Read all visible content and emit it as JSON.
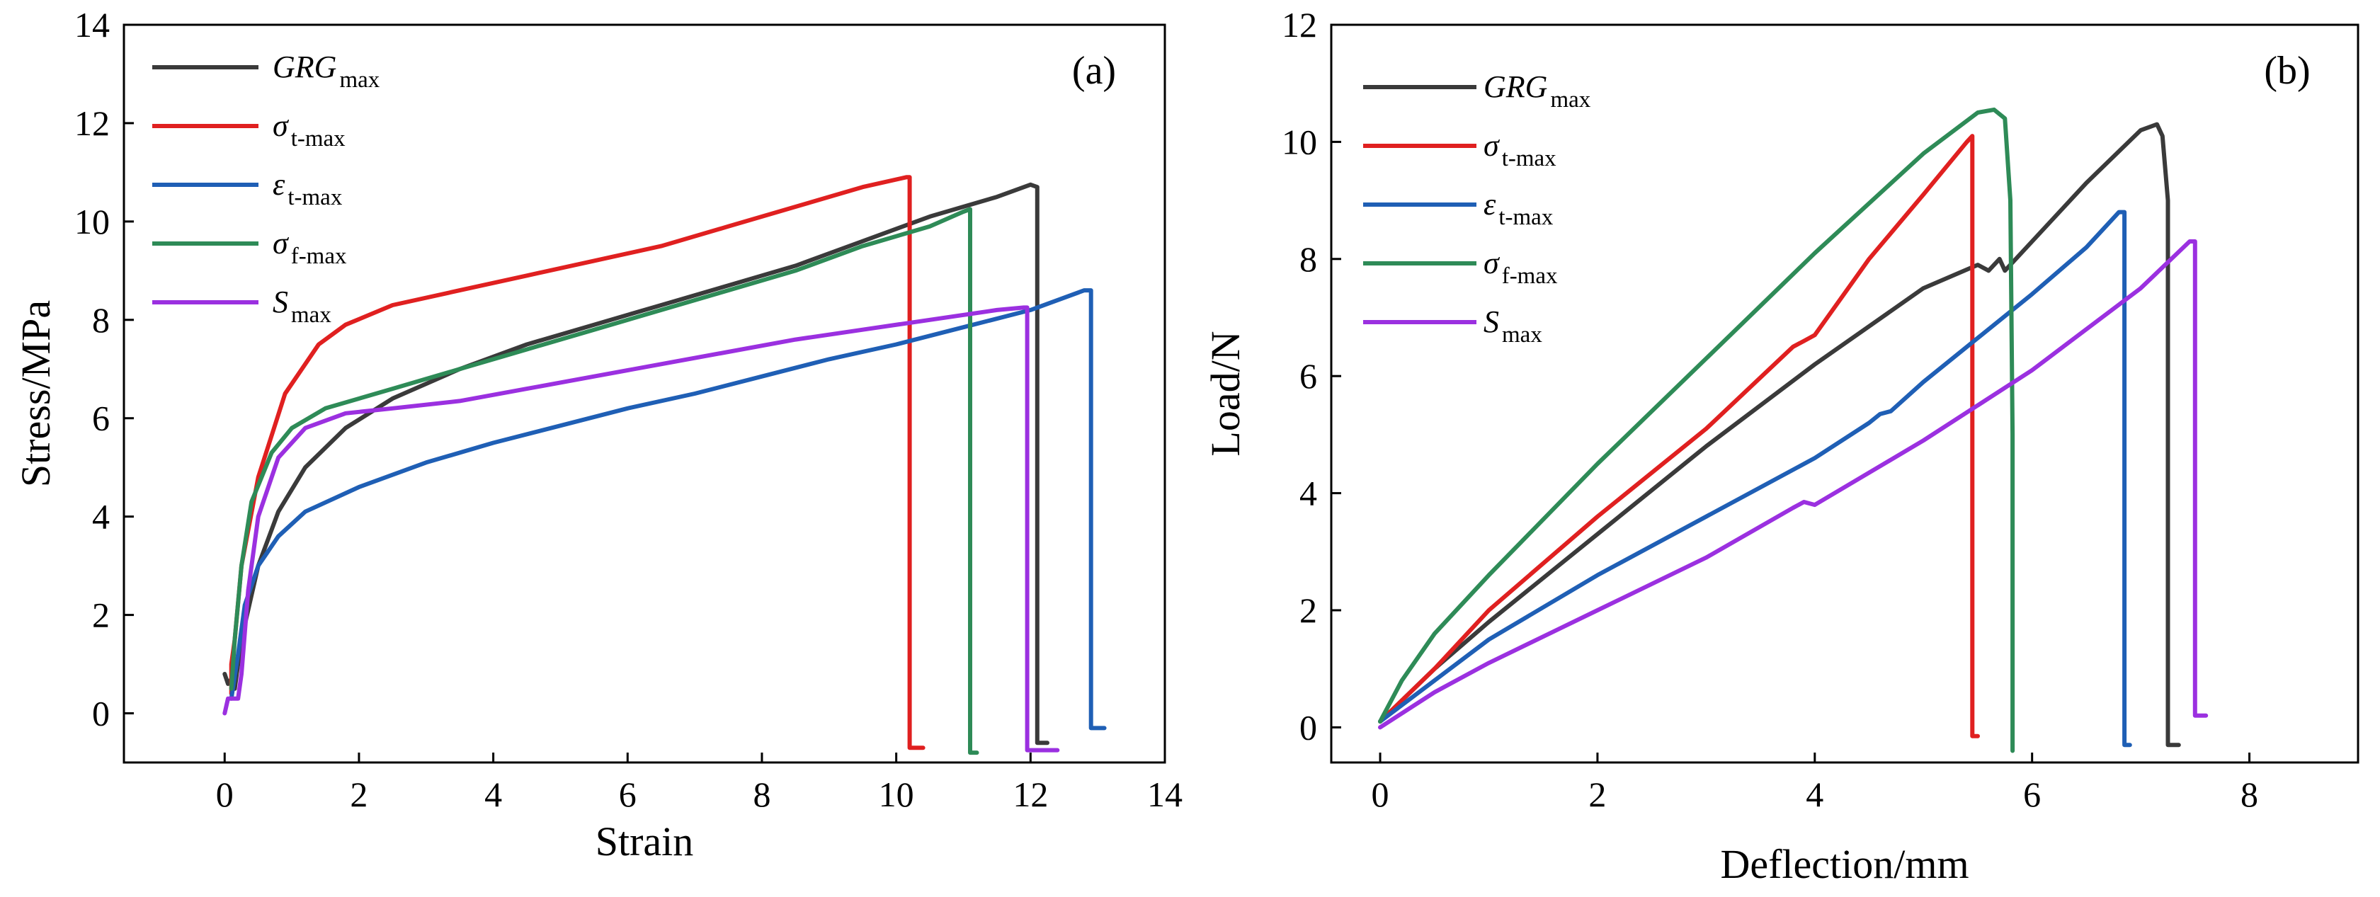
{
  "chart_data": [
    {
      "panel": "(a)",
      "type": "line",
      "xlabel": "Strain",
      "ylabel": "Stress/MPa",
      "xlim": [
        -1.5,
        14
      ],
      "ylim": [
        -1,
        14
      ],
      "xticks": [
        0,
        2,
        4,
        6,
        8,
        10,
        12,
        14
      ],
      "yticks": [
        0,
        2,
        4,
        6,
        8,
        10,
        12,
        14
      ],
      "legend_position": "top-left",
      "series": [
        {
          "name": "GRG",
          "sub": "max",
          "color": "#3a3a3a",
          "x": [
            0,
            0.05,
            0.1,
            0.15,
            0.2,
            0.3,
            0.5,
            0.8,
            1.2,
            1.8,
            2.5,
            3.5,
            4.5,
            5.5,
            6.5,
            7.5,
            8.5,
            9.5,
            10.5,
            11.5,
            12.0,
            12.1,
            12.1,
            12.25
          ],
          "y": [
            0.8,
            0.6,
            0.7,
            0.5,
            1.0,
            1.8,
            3.0,
            4.1,
            5.0,
            5.8,
            6.4,
            7.0,
            7.5,
            7.9,
            8.3,
            8.7,
            9.1,
            9.6,
            10.1,
            10.5,
            10.75,
            10.7,
            -0.6,
            -0.6
          ]
        },
        {
          "name": "σ",
          "sub": "t-max",
          "color": "#e02020",
          "x": [
            0.1,
            0.1,
            0.15,
            0.25,
            0.5,
            0.9,
            1.4,
            1.8,
            2.5,
            3.5,
            4.5,
            5.5,
            6.5,
            7.5,
            8.5,
            9.5,
            10.15,
            10.2,
            10.2,
            10.4
          ],
          "y": [
            0.4,
            1.0,
            1.5,
            3.0,
            4.8,
            6.5,
            7.5,
            7.9,
            8.3,
            8.6,
            8.9,
            9.2,
            9.5,
            9.9,
            10.3,
            10.7,
            10.9,
            10.9,
            -0.7,
            -0.7
          ]
        },
        {
          "name": "ε",
          "sub": "t-max",
          "color": "#1f5fb5",
          "x": [
            0.1,
            0.2,
            0.3,
            0.5,
            0.8,
            1.2,
            2.0,
            3.0,
            4.0,
            5.0,
            6.0,
            7.0,
            8.0,
            9.0,
            10.0,
            11.0,
            12.0,
            12.8,
            12.9,
            12.9,
            13.1
          ],
          "y": [
            0.3,
            1.2,
            2.2,
            3.0,
            3.6,
            4.1,
            4.6,
            5.1,
            5.5,
            5.85,
            6.2,
            6.5,
            6.85,
            7.2,
            7.5,
            7.85,
            8.2,
            8.6,
            8.6,
            -0.3,
            -0.3
          ]
        },
        {
          "name": "σ",
          "sub": "f-max",
          "color": "#2e8b57",
          "x": [
            0.1,
            0.15,
            0.25,
            0.4,
            0.7,
            1.0,
            1.5,
            2.5,
            3.5,
            4.5,
            5.5,
            6.5,
            7.5,
            8.5,
            9.5,
            10.5,
            11.0,
            11.1,
            11.1,
            11.2
          ],
          "y": [
            0.5,
            1.5,
            3.0,
            4.3,
            5.3,
            5.8,
            6.2,
            6.6,
            7.0,
            7.4,
            7.8,
            8.2,
            8.6,
            9.0,
            9.5,
            9.9,
            10.2,
            10.25,
            -0.8,
            -0.8
          ]
        },
        {
          "name": "S",
          "sub": "max",
          "color": "#9b30e0",
          "x": [
            0,
            0.05,
            0.2,
            0.25,
            0.35,
            0.5,
            0.8,
            1.2,
            1.8,
            2.5,
            3.5,
            4.5,
            5.5,
            6.5,
            7.5,
            8.5,
            9.5,
            10.5,
            11.5,
            11.9,
            11.95,
            11.95,
            12.4
          ],
          "y": [
            0,
            0.3,
            0.3,
            0.8,
            2.5,
            4.0,
            5.2,
            5.8,
            6.1,
            6.2,
            6.35,
            6.6,
            6.85,
            7.1,
            7.35,
            7.6,
            7.8,
            8.0,
            8.2,
            8.25,
            8.25,
            -0.75,
            -0.75
          ]
        }
      ]
    },
    {
      "panel": "(b)",
      "type": "line",
      "xlabel": "Deflection/mm",
      "ylabel": "Load/N",
      "xlim": [
        -0.45,
        9
      ],
      "ylim": [
        -0.6,
        12
      ],
      "xticks": [
        0,
        2,
        4,
        6,
        8
      ],
      "yticks": [
        0,
        2,
        4,
        6,
        8,
        10,
        12
      ],
      "legend_position": "top-left",
      "series": [
        {
          "name": "GRG",
          "sub": "max",
          "color": "#3a3a3a",
          "x": [
            0,
            0.5,
            1,
            2,
            3,
            4,
            5,
            5.5,
            5.6,
            5.7,
            5.75,
            5.8,
            6.0,
            6.5,
            7.0,
            7.15,
            7.2,
            7.25,
            7.25,
            7.35
          ],
          "y": [
            0.1,
            1.0,
            1.8,
            3.3,
            4.8,
            6.2,
            7.5,
            7.9,
            7.8,
            8.0,
            7.8,
            7.9,
            8.3,
            9.3,
            10.2,
            10.3,
            10.1,
            9.0,
            -0.3,
            -0.3
          ]
        },
        {
          "name": "σ",
          "sub": "t-max",
          "color": "#e02020",
          "x": [
            0,
            0.5,
            1,
            2,
            3,
            3.8,
            3.9,
            4.0,
            4.5,
            5.0,
            5.4,
            5.45,
            5.45,
            5.5
          ],
          "y": [
            0.1,
            1.0,
            2.0,
            3.6,
            5.1,
            6.5,
            6.6,
            6.7,
            8.0,
            9.1,
            10.0,
            10.1,
            -0.15,
            -0.15
          ]
        },
        {
          "name": "ε",
          "sub": "t-max",
          "color": "#1f5fb5",
          "x": [
            0,
            0.5,
            1,
            2,
            3,
            4,
            4.5,
            4.6,
            4.7,
            5.0,
            6.0,
            6.5,
            6.8,
            6.85,
            6.85,
            6.9
          ],
          "y": [
            0.1,
            0.8,
            1.5,
            2.6,
            3.6,
            4.6,
            5.2,
            5.35,
            5.4,
            5.9,
            7.4,
            8.2,
            8.8,
            8.8,
            -0.3,
            -0.3
          ]
        },
        {
          "name": "σ",
          "sub": "f-max",
          "color": "#2e8b57",
          "x": [
            0,
            0.2,
            0.5,
            1,
            2,
            3,
            4,
            5,
            5.5,
            5.65,
            5.75,
            5.8,
            5.82,
            5.82
          ],
          "y": [
            0.1,
            0.8,
            1.6,
            2.6,
            4.5,
            6.3,
            8.1,
            9.8,
            10.5,
            10.55,
            10.4,
            9.0,
            5.0,
            -0.4
          ]
        },
        {
          "name": "S",
          "sub": "max",
          "color": "#9b30e0",
          "x": [
            0,
            0.5,
            1,
            2,
            3,
            3.8,
            3.9,
            4.0,
            5.0,
            6.0,
            7.0,
            7.45,
            7.5,
            7.5,
            7.6
          ],
          "y": [
            0,
            0.6,
            1.1,
            2.0,
            2.9,
            3.75,
            3.85,
            3.8,
            4.9,
            6.1,
            7.5,
            8.3,
            8.3,
            0.2,
            0.2
          ]
        }
      ]
    }
  ]
}
